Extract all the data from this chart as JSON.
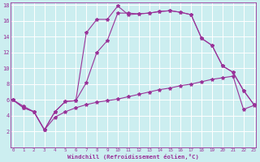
{
  "xlabel": "Windchill (Refroidissement éolien,°C)",
  "bg_color": "#cceef0",
  "grid_color": "#ffffff",
  "line_color": "#993399",
  "xmin": 0,
  "xmax": 23,
  "ymin": 0,
  "ymax": 18,
  "yticks": [
    2,
    4,
    6,
    8,
    10,
    12,
    14,
    16,
    18
  ],
  "xticks": [
    0,
    1,
    2,
    3,
    4,
    5,
    6,
    7,
    8,
    9,
    10,
    11,
    12,
    13,
    14,
    15,
    16,
    17,
    18,
    19,
    20,
    21,
    22,
    23
  ],
  "line1_x": [
    0,
    1,
    2,
    3,
    4,
    5,
    6,
    7,
    8,
    9,
    10,
    11,
    12,
    13,
    14,
    15,
    16,
    17,
    18,
    19,
    20,
    21,
    22,
    23
  ],
  "line1_y": [
    6.0,
    5.0,
    4.5,
    2.2,
    4.5,
    5.8,
    5.9,
    14.5,
    16.2,
    16.2,
    17.9,
    16.8,
    16.9,
    17.0,
    17.2,
    17.3,
    17.1,
    16.8,
    13.8,
    12.9,
    10.3,
    9.5,
    7.2,
    5.4
  ],
  "line2_x": [
    0,
    1,
    2,
    3,
    4,
    5,
    6,
    7,
    8,
    9,
    10,
    11,
    12,
    13,
    14,
    15,
    16,
    17,
    18,
    19,
    20,
    21,
    22,
    23
  ],
  "line2_y": [
    6.0,
    5.0,
    4.5,
    2.2,
    4.5,
    5.8,
    5.9,
    8.2,
    12.0,
    13.5,
    17.0,
    17.0,
    16.9,
    17.0,
    17.2,
    17.3,
    17.1,
    16.8,
    13.8,
    12.9,
    10.3,
    9.5,
    7.2,
    5.4
  ],
  "line3_x": [
    0,
    1,
    2,
    3,
    4,
    5,
    6,
    7,
    8,
    9,
    10,
    11,
    12,
    13,
    14,
    15,
    16,
    17,
    18,
    19,
    20,
    21,
    22,
    23
  ],
  "line3_y": [
    6.0,
    5.2,
    4.5,
    2.2,
    3.8,
    4.5,
    5.0,
    5.4,
    5.7,
    5.9,
    6.1,
    6.4,
    6.7,
    7.0,
    7.3,
    7.5,
    7.8,
    8.0,
    8.3,
    8.6,
    8.8,
    9.0,
    4.8,
    5.3
  ]
}
